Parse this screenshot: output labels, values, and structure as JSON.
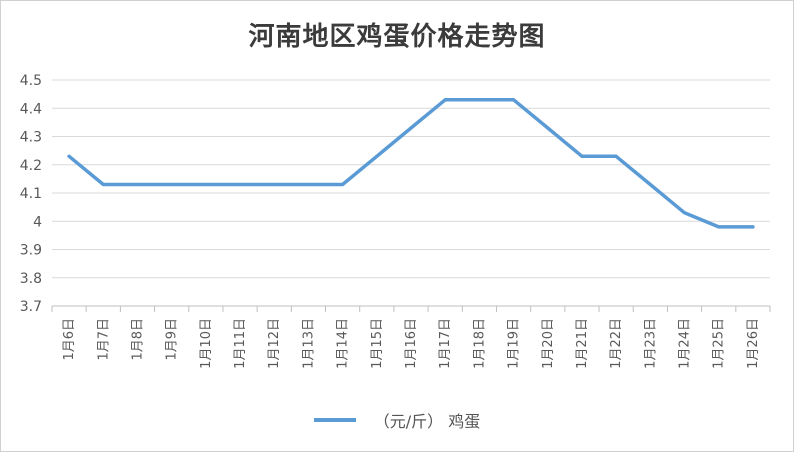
{
  "chart_data": {
    "type": "line",
    "title": "河南地区鸡蛋价格走势图",
    "xlabel": "",
    "ylabel": "",
    "categories": [
      "1月6日",
      "1月7日",
      "1月8日",
      "1月9日",
      "1月10日",
      "1月11日",
      "1月12日",
      "1月13日",
      "1月14日",
      "1月15日",
      "1月16日",
      "1月17日",
      "1月18日",
      "1月19日",
      "1月20日",
      "1月21日",
      "1月22日",
      "1月23日",
      "1月24日",
      "1月25日",
      "1月26日"
    ],
    "series": [
      {
        "name": "（元/斤） 鸡蛋",
        "color": "#5b9bd5",
        "values": [
          4.23,
          4.13,
          4.13,
          4.13,
          4.13,
          4.13,
          4.13,
          4.13,
          4.13,
          4.23,
          4.33,
          4.43,
          4.43,
          4.43,
          4.33,
          4.23,
          4.23,
          4.13,
          4.03,
          3.98,
          3.98
        ]
      }
    ],
    "ylim": [
      3.7,
      4.5
    ],
    "yticks": [
      "4.5",
      "4.4",
      "4.3",
      "4.2",
      "4.1",
      "4",
      "3.9",
      "3.8",
      "3.7"
    ],
    "ytick_values": [
      4.5,
      4.4,
      4.3,
      4.2,
      4.1,
      4.0,
      3.9,
      3.8,
      3.7
    ],
    "grid": true,
    "legend_position": "bottom"
  }
}
